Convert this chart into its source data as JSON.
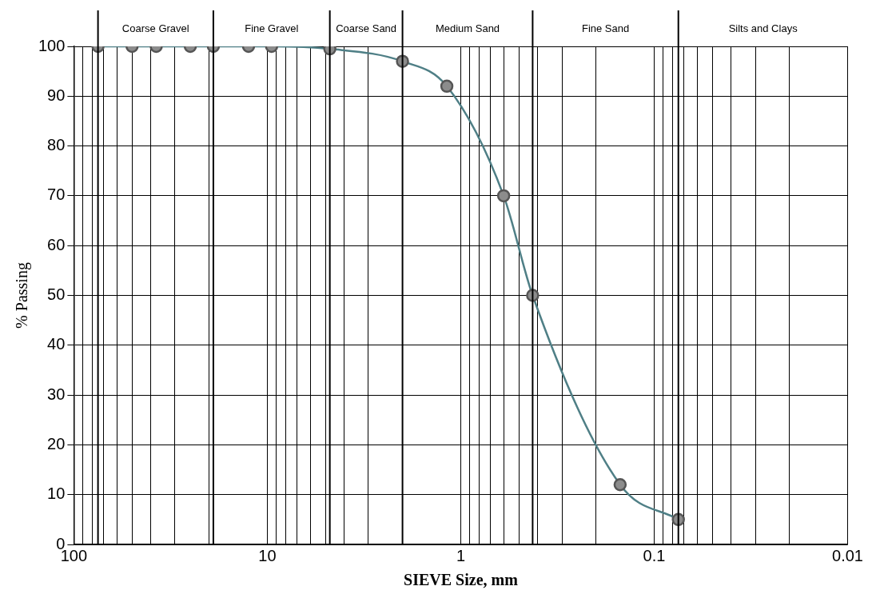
{
  "chart_data": {
    "type": "line",
    "xlabel": "SIEVE Size, mm",
    "ylabel": "% Passing",
    "x": [
      75,
      50,
      37.5,
      25,
      19,
      12.5,
      9.5,
      4.75,
      2,
      1.18,
      0.6,
      0.425,
      0.15,
      0.075
    ],
    "series": [
      {
        "color": "#4f7f86",
        "values": [
          100,
          100,
          100,
          100,
          100,
          100,
          100,
          99.5,
          97,
          92,
          70,
          50,
          12,
          5
        ]
      }
    ],
    "log": "x",
    "xlim": [
      100,
      0.01
    ],
    "xticks": [
      100,
      {
        "value": 90,
        "label": null
      },
      {
        "value": 80,
        "label": null
      },
      {
        "value": 70,
        "label": null
      },
      {
        "value": 60,
        "label": null
      },
      {
        "value": 50,
        "label": null
      },
      {
        "value": 40,
        "label": null
      },
      {
        "value": 30,
        "label": null
      },
      {
        "value": 20,
        "label": null
      },
      10,
      {
        "value": 9,
        "label": null
      },
      {
        "value": 8,
        "label": null
      },
      {
        "value": 7,
        "label": null
      },
      {
        "value": 6,
        "label": null
      },
      {
        "value": 5,
        "label": null
      },
      {
        "value": 4,
        "label": null
      },
      {
        "value": 3,
        "label": null
      },
      {
        "value": 2,
        "label": null
      },
      1,
      {
        "value": 0.9,
        "label": null
      },
      {
        "value": 0.8,
        "label": null
      },
      {
        "value": 0.7,
        "label": null
      },
      {
        "value": 0.6,
        "label": null
      },
      {
        "value": 0.5,
        "label": null
      },
      {
        "value": 0.4,
        "label": null
      },
      {
        "value": 0.3,
        "label": null
      },
      {
        "value": 0.2,
        "label": null
      },
      0.1,
      {
        "value": 0.09,
        "label": null
      },
      {
        "value": 0.08,
        "label": null
      },
      {
        "value": 0.07,
        "label": null
      },
      {
        "value": 0.06,
        "label": null
      },
      {
        "value": 0.05,
        "label": null
      },
      {
        "value": 0.04,
        "label": null
      },
      {
        "value": 0.03,
        "label": null
      },
      {
        "value": 0.02,
        "label": null
      },
      0.01
    ],
    "ylim": [
      0,
      100
    ],
    "yticks": [
      0,
      10,
      20,
      30,
      40,
      50,
      60,
      70,
      80,
      90,
      100
    ],
    "grid": true,
    "legend": false,
    "marker": "circle",
    "line_style": "solid",
    "ref_lines": [
      {
        "axis": "x",
        "value": 75
      },
      {
        "axis": "x",
        "value": 19
      },
      {
        "axis": "x",
        "value": 4.75
      },
      {
        "axis": "x",
        "value": 2
      },
      {
        "axis": "x",
        "value": 0.425
      },
      {
        "axis": "x",
        "value": 0.075
      }
    ],
    "annotations": [
      "Coarse Gravel",
      "Fine Gravel",
      "Coarse Sand",
      "Medium Sand",
      "Fine Sand",
      "Silts and Clays"
    ]
  }
}
